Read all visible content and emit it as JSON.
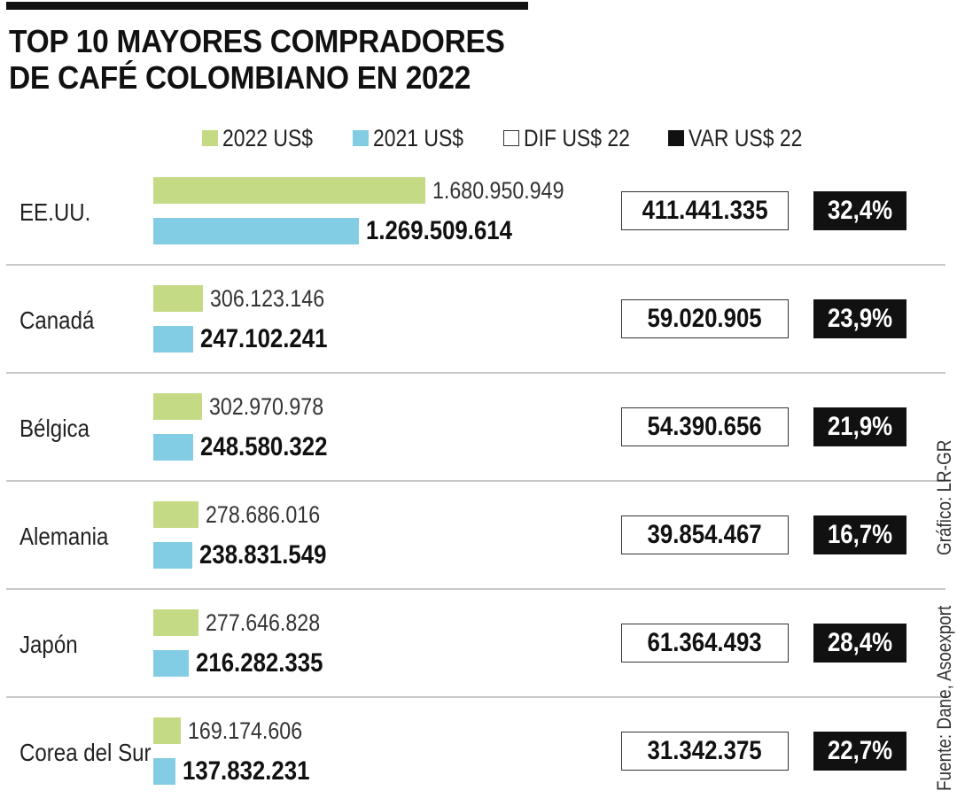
{
  "title": {
    "line1": "TOP 10 MAYORES COMPRADORES",
    "line2": "DE CAFÉ COLOMBIANO EN 2022"
  },
  "legend": {
    "y2022": "2022 US$",
    "y2021": "2021 US$",
    "dif": "DIF US$ 22",
    "var": "VAR US$ 22"
  },
  "colors": {
    "y2022": "#c5da85",
    "y2021": "#83cde4",
    "var_box": "#111111",
    "dif_box_border": "#333333"
  },
  "credits": {
    "grafico": "Gráfico: LR-GR",
    "fuente": "Fuente: Dane, Asoexport"
  },
  "chart_data": {
    "type": "bar",
    "orientation": "horizontal",
    "categories": [
      "EE.UU.",
      "Canadá",
      "Bélgica",
      "Alemania",
      "Japón",
      "Corea del Sur"
    ],
    "series": [
      {
        "name": "2022 US$",
        "values": [
          1680950949,
          306123146,
          302970978,
          278686016,
          277646828,
          169174606
        ],
        "labels": [
          "1.680.950.949",
          "306.123.146",
          "302.970.978",
          "278.686.016",
          "277.646.828",
          "169.174.606"
        ]
      },
      {
        "name": "2021 US$",
        "values": [
          1269509614,
          247102241,
          248580322,
          238831549,
          216282335,
          137832231
        ],
        "labels": [
          "1.269.509.614",
          "247.102.241",
          "248.580.322",
          "238.831.549",
          "216.282.335",
          "137.832.231"
        ]
      }
    ],
    "dif": [
      "411.441.335",
      "59.020.905",
      "54.390.656",
      "39.854.467",
      "61.364.493",
      "31.342.375"
    ],
    "var": [
      "32,4%",
      "23,9%",
      "21,9%",
      "16,7%",
      "28,4%",
      "22,7%"
    ],
    "legend_placement": "top",
    "grid": false
  }
}
